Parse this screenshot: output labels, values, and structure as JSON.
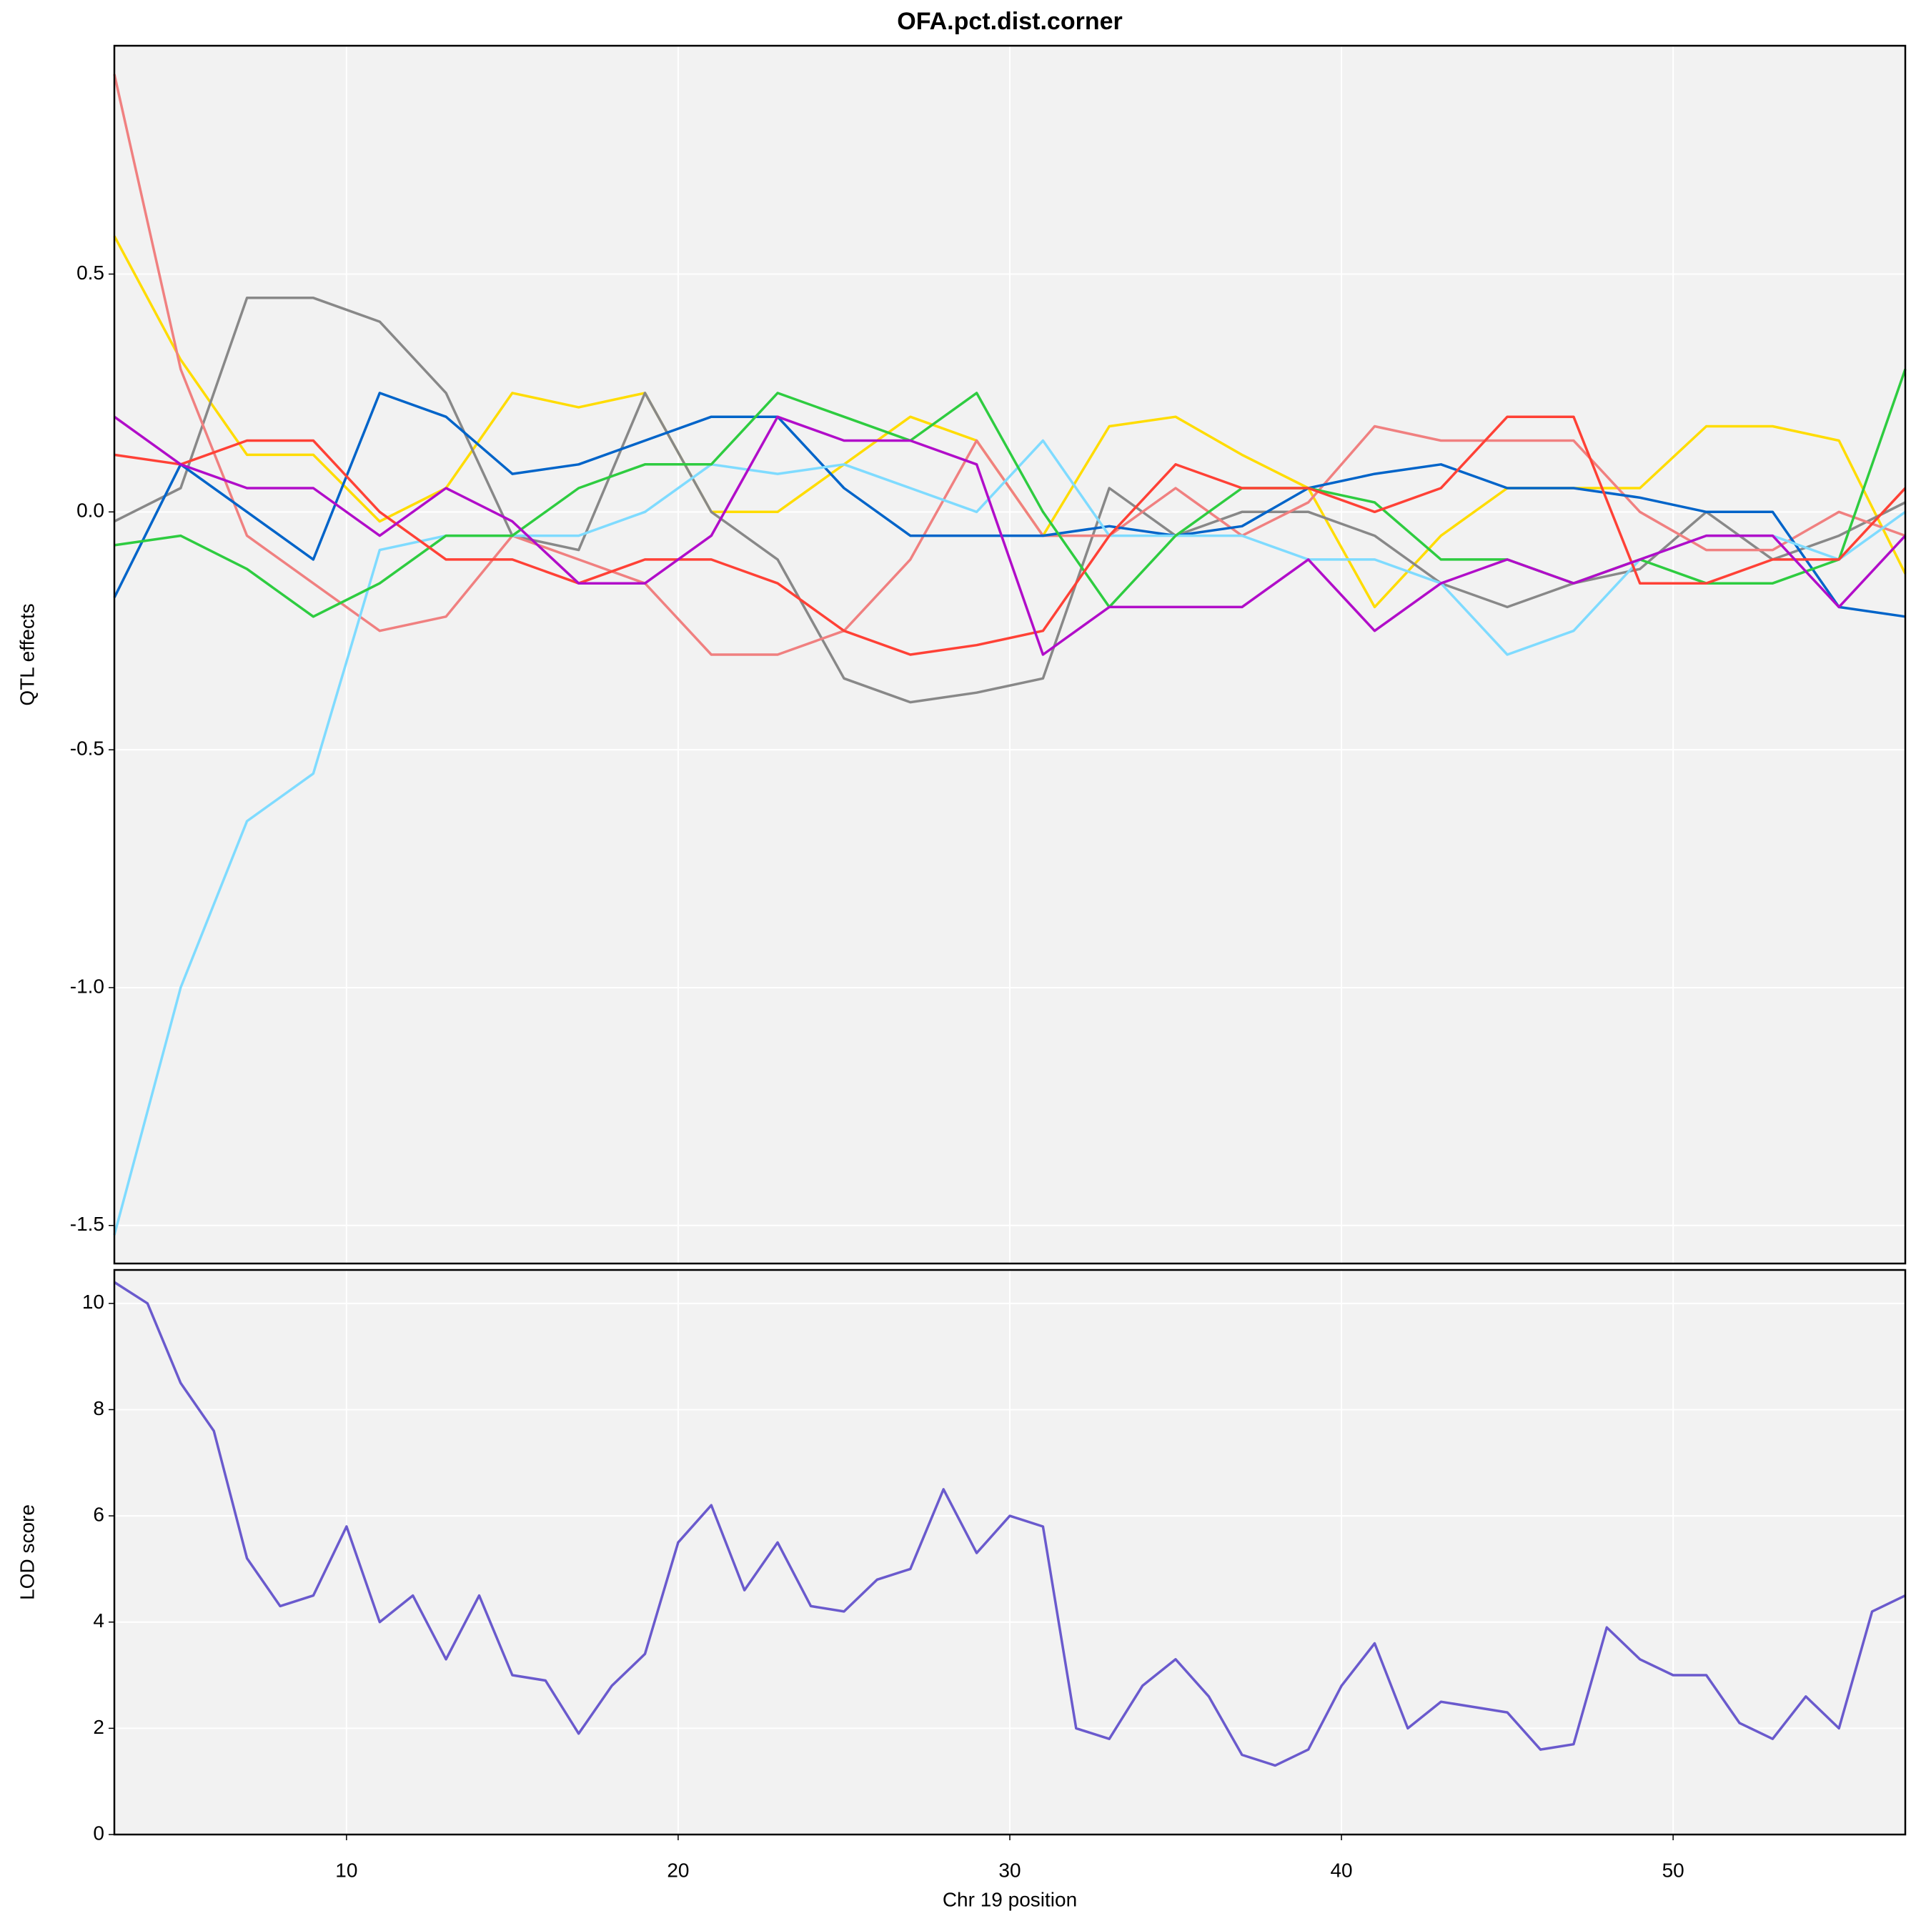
{
  "chart_data": [
    {
      "type": "line",
      "title": "OFA.pct.dist.corner",
      "ylabel": "QTL effects",
      "x": [
        3,
        5,
        7,
        9,
        11,
        13,
        15,
        17,
        19,
        21,
        23,
        25,
        27,
        29,
        31,
        33,
        35,
        37,
        39,
        41,
        43,
        45,
        47,
        49,
        51,
        53,
        55,
        57
      ],
      "series": [
        {
          "color": "#FFDC00",
          "values": [
            0.58,
            0.32,
            0.12,
            0.12,
            -0.02,
            0.05,
            0.25,
            0.22,
            0.25,
            0.0,
            0.0,
            0.1,
            0.2,
            0.15,
            -0.05,
            0.18,
            0.2,
            0.12,
            0.05,
            -0.2,
            -0.05,
            0.05,
            0.05,
            0.05,
            0.18,
            0.18,
            0.15,
            -0.13
          ]
        },
        {
          "color": "#888888",
          "values": [
            -0.02,
            0.05,
            0.45,
            0.45,
            0.4,
            0.25,
            -0.05,
            -0.08,
            0.25,
            0.0,
            -0.1,
            -0.35,
            -0.4,
            -0.38,
            -0.35,
            0.05,
            -0.05,
            0.0,
            0.0,
            -0.05,
            -0.15,
            -0.2,
            -0.15,
            -0.12,
            0.0,
            -0.1,
            -0.05,
            0.02
          ]
        },
        {
          "color": "#F08080",
          "values": [
            0.92,
            0.3,
            -0.05,
            -0.15,
            -0.25,
            -0.22,
            -0.05,
            -0.1,
            -0.15,
            -0.3,
            -0.3,
            -0.25,
            -0.1,
            0.15,
            -0.05,
            -0.05,
            0.05,
            -0.05,
            0.02,
            0.18,
            0.15,
            0.15,
            0.15,
            0.0,
            -0.08,
            -0.08,
            0.0,
            -0.05
          ]
        },
        {
          "color": "#0064C9",
          "values": [
            -0.18,
            0.1,
            0.0,
            -0.1,
            0.25,
            0.2,
            0.08,
            0.1,
            0.15,
            0.2,
            0.2,
            0.05,
            -0.05,
            -0.05,
            -0.05,
            -0.03,
            -0.05,
            -0.03,
            0.05,
            0.08,
            0.1,
            0.05,
            0.05,
            0.03,
            0.0,
            0.0,
            -0.2,
            -0.22
          ]
        },
        {
          "color": "#7FDBFF",
          "values": [
            -1.52,
            -1.0,
            -0.65,
            -0.55,
            -0.08,
            -0.05,
            -0.05,
            -0.05,
            0.0,
            0.1,
            0.08,
            0.1,
            0.05,
            0.0,
            0.15,
            -0.05,
            -0.05,
            -0.05,
            -0.1,
            -0.1,
            -0.15,
            -0.3,
            -0.25,
            -0.1,
            -0.05,
            -0.05,
            -0.1,
            0.0
          ]
        },
        {
          "color": "#2ECC40",
          "values": [
            -0.07,
            -0.05,
            -0.12,
            -0.22,
            -0.15,
            -0.05,
            -0.05,
            0.05,
            0.1,
            0.1,
            0.25,
            0.2,
            0.15,
            0.25,
            0.0,
            -0.2,
            -0.05,
            0.05,
            0.05,
            0.02,
            -0.1,
            -0.1,
            -0.15,
            -0.1,
            -0.15,
            -0.15,
            -0.1,
            0.3
          ]
        },
        {
          "color": "#FF4136",
          "values": [
            0.12,
            0.1,
            0.15,
            0.15,
            0.0,
            -0.1,
            -0.1,
            -0.15,
            -0.1,
            -0.1,
            -0.15,
            -0.25,
            -0.3,
            -0.28,
            -0.25,
            -0.05,
            0.1,
            0.05,
            0.05,
            0.0,
            0.05,
            0.2,
            0.2,
            -0.15,
            -0.15,
            -0.1,
            -0.1,
            0.05
          ]
        },
        {
          "color": "#B10DC9",
          "values": [
            0.2,
            0.1,
            0.05,
            0.05,
            -0.05,
            0.05,
            -0.02,
            -0.15,
            -0.15,
            -0.05,
            0.2,
            0.15,
            0.15,
            0.1,
            -0.3,
            -0.2,
            -0.2,
            -0.2,
            -0.1,
            -0.25,
            -0.15,
            -0.1,
            -0.15,
            -0.1,
            -0.05,
            -0.05,
            -0.2,
            -0.05
          ]
        }
      ],
      "xlim": [
        3,
        57
      ],
      "xticks": [
        10,
        20,
        30,
        40,
        50
      ],
      "ylim": [
        -1.58,
        0.98
      ],
      "yticks": [
        -1.5,
        {
          "value": -1,
          "label": "-1.0"
        },
        -0.5,
        {
          "value": 0,
          "label": "0.0"
        },
        0.5
      ],
      "grid": true
    },
    {
      "type": "line",
      "ylabel": "LOD score",
      "xlabel": "Chr 19 position",
      "x": [
        3,
        4,
        5,
        6,
        7,
        8,
        9,
        10,
        11,
        12,
        13,
        14,
        15,
        16,
        17,
        18,
        19,
        20,
        21,
        22,
        23,
        24,
        25,
        26,
        27,
        28,
        29,
        30,
        31,
        32,
        33,
        34,
        35,
        36,
        37,
        38,
        39,
        40,
        41,
        42,
        43,
        44,
        45,
        46,
        47,
        48,
        49,
        50,
        51,
        52,
        53,
        54,
        55,
        56,
        57
      ],
      "series": [
        {
          "color": "#6A5ACD",
          "values": [
            10.4,
            10.0,
            8.5,
            7.6,
            5.2,
            4.3,
            4.5,
            5.8,
            4.0,
            4.5,
            3.3,
            4.5,
            3.0,
            2.9,
            1.9,
            2.8,
            3.4,
            5.5,
            6.2,
            4.6,
            5.5,
            4.3,
            4.2,
            4.8,
            5.0,
            6.5,
            5.3,
            6.0,
            5.8,
            2.0,
            1.8,
            2.8,
            3.3,
            2.6,
            1.5,
            1.3,
            1.6,
            2.8,
            3.6,
            2.0,
            2.5,
            2.4,
            2.3,
            1.6,
            1.7,
            3.9,
            3.3,
            3.0,
            3.0,
            2.1,
            1.8,
            2.6,
            2.0,
            4.2,
            4.5
          ]
        }
      ],
      "xlim": [
        3,
        57
      ],
      "xticks": [
        10,
        20,
        30,
        40,
        50
      ],
      "ylim": [
        0,
        10.63
      ],
      "yticks": [
        0,
        2,
        4,
        6,
        8,
        10
      ],
      "grid": true
    }
  ]
}
